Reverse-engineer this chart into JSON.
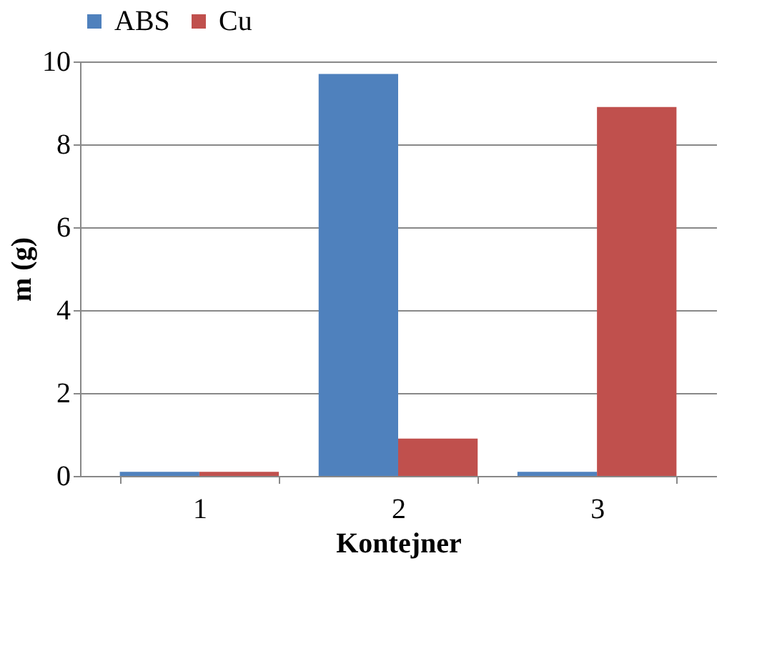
{
  "chart_data": {
    "type": "bar",
    "xlabel": "Kontejner",
    "ylabel": "m (g)",
    "categories": [
      "1",
      "2",
      "3"
    ],
    "series": [
      {
        "name": "ABS",
        "color": "#4f81bd",
        "values": [
          0.1,
          9.7,
          0.1
        ]
      },
      {
        "name": "Cu",
        "color": "#c0504d",
        "values": [
          0.1,
          0.9,
          8.9
        ]
      }
    ],
    "ylim": [
      0,
      10
    ],
    "yticks": [
      0,
      2,
      4,
      6,
      8,
      10
    ],
    "grid": "y",
    "legend": "top"
  }
}
